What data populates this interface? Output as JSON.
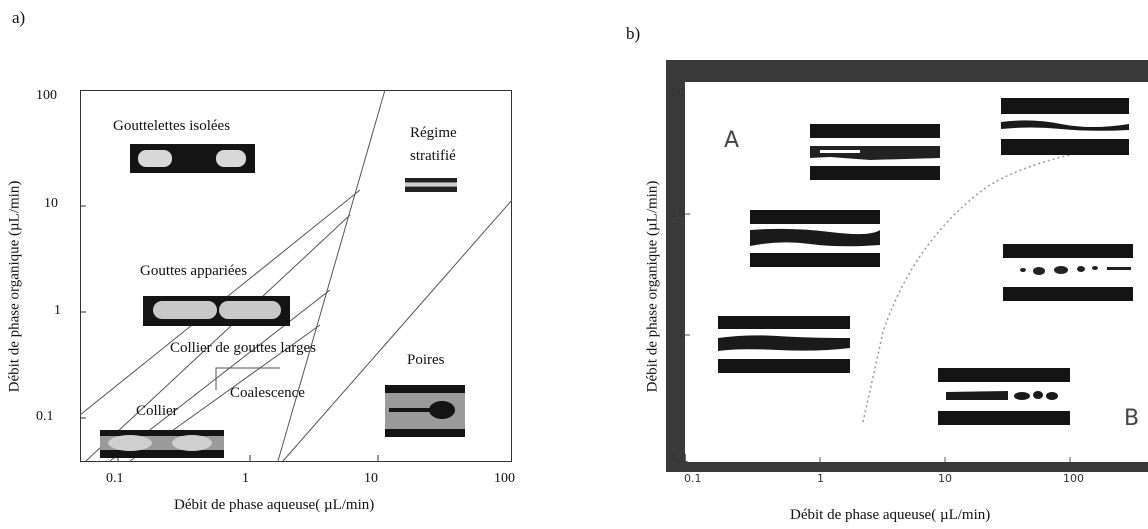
{
  "panel_a": {
    "letter": "a)",
    "xlabel": "Débit de phase aqueuse( µL/min)",
    "ylabel": "Débit de phase organique (µL/min)",
    "xticks": [
      "0.1",
      "1",
      "10",
      "100"
    ],
    "yticks": [
      "100",
      "10",
      "1",
      "0.1"
    ],
    "regions": {
      "gouttelettes": "Gouttelettes isolées",
      "regime": "Régime",
      "stratifie": "stratifié",
      "gouttes": "Gouttes appariées",
      "collier_larges": "Collier de gouttes larges",
      "coalescence": "Coalescence",
      "poires": "Poires",
      "collier": "Collier"
    }
  },
  "panel_b": {
    "letter": "b)",
    "xlabel": "Débit de phase aqueuse( µL/min)",
    "ylabel": "Débit de phase organique (µL/min)",
    "xticks": [
      "0.1",
      "1",
      "10",
      "100"
    ],
    "yticks": [
      "00",
      "10",
      "1",
      "0,1"
    ],
    "corner_a": "A",
    "corner_b": "B"
  },
  "colors": {
    "frame": "#333333",
    "boundary": "#555555",
    "channel_dark": "#141414",
    "droplet_light": "#d8d8d8",
    "dotted_curve": "#999999"
  }
}
